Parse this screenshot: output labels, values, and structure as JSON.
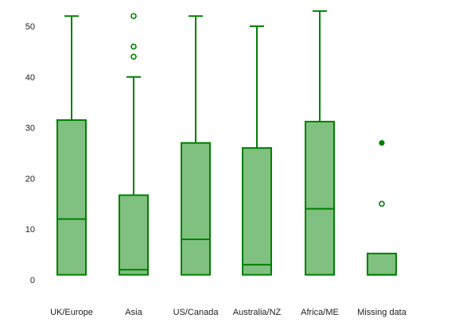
{
  "chart_data": {
    "type": "boxplot",
    "categories": [
      "UK/Europe",
      "Asia",
      "US/Canada",
      "Australia/NZ",
      "Africa/ME",
      "Missing data"
    ],
    "yticks": [
      0,
      10,
      20,
      30,
      40,
      50
    ],
    "ylim": [
      -1,
      55
    ],
    "grid": false,
    "colors": {
      "box_fill": "#80c080",
      "stroke": "#008000"
    },
    "boxes": [
      {
        "name": "UK/Europe",
        "whisker_low": 1,
        "q1": 1,
        "median": 12,
        "q3": 31.5,
        "whisker_high": 52,
        "outliers": [],
        "extremes": []
      },
      {
        "name": "Asia",
        "whisker_low": 1,
        "q1": 1,
        "median": 2,
        "q3": 16.7,
        "whisker_high": 40,
        "outliers": [
          44,
          46,
          52
        ],
        "extremes": []
      },
      {
        "name": "US/Canada",
        "whisker_low": 1,
        "q1": 1,
        "median": 8,
        "q3": 27,
        "whisker_high": 52,
        "outliers": [],
        "extremes": []
      },
      {
        "name": "Australia/NZ",
        "whisker_low": 1,
        "q1": 1,
        "median": 3,
        "q3": 26,
        "whisker_high": 50,
        "outliers": [],
        "extremes": []
      },
      {
        "name": "Africa/ME",
        "whisker_low": 1,
        "q1": 1,
        "median": 14,
        "q3": 31.2,
        "whisker_high": 53,
        "outliers": [],
        "extremes": []
      },
      {
        "name": "Missing data",
        "whisker_low": 1,
        "q1": 1,
        "median": 1,
        "q3": 5.2,
        "whisker_high": 5.2,
        "outliers": [
          15
        ],
        "extremes": [
          27
        ]
      }
    ]
  }
}
